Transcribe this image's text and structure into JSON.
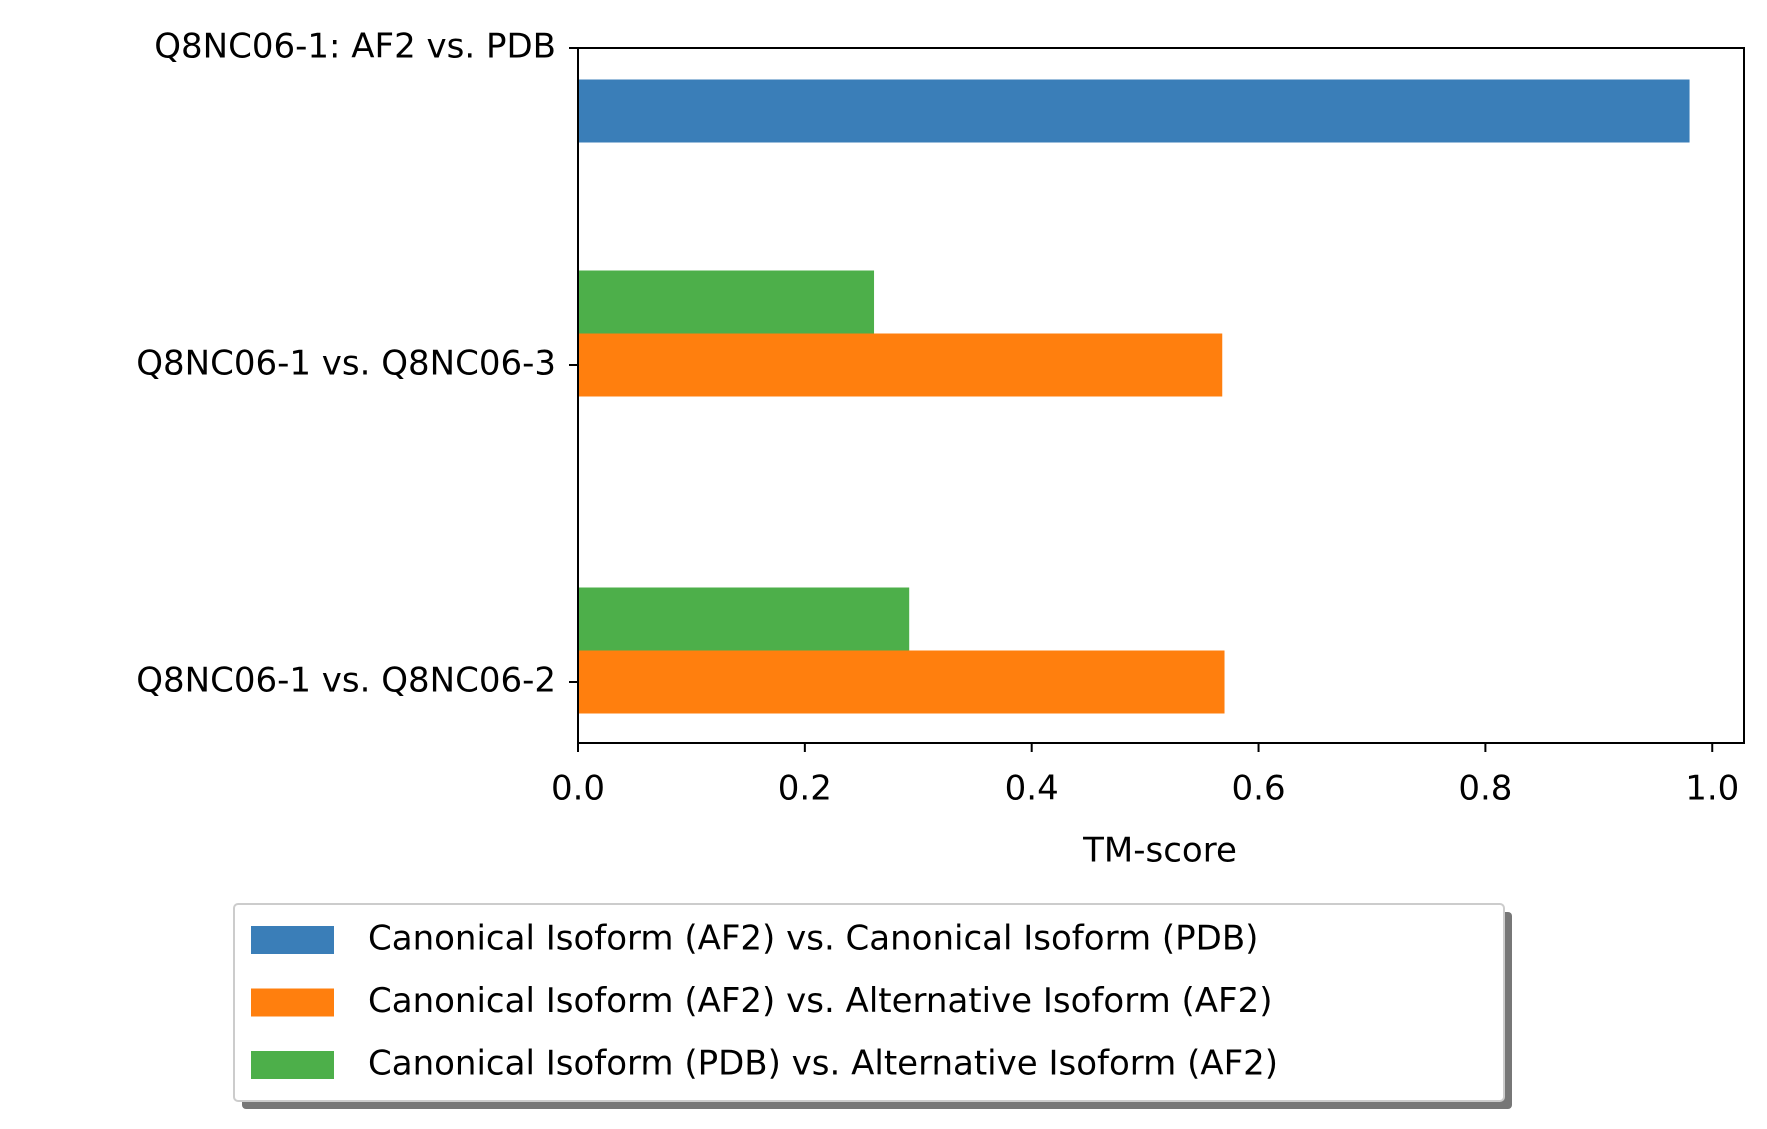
{
  "chart_data": {
    "type": "barh",
    "xlabel": "TM-score",
    "categories": [
      "Q8NC06-1: AF2 vs. PDB",
      "Q8NC06-1 vs. Q8NC06-3",
      "Q8NC06-1 vs. Q8NC06-2"
    ],
    "series": [
      {
        "name": "Canonical Isoform (AF2) vs. Canonical Isoform (PDB)",
        "color": "#3a7eb8",
        "values": [
          0.98,
          null,
          null
        ]
      },
      {
        "name": "Canonical Isoform (AF2) vs. Alternative Isoform (AF2)",
        "color": "#ff7f0e",
        "values": [
          null,
          0.568,
          0.57
        ]
      },
      {
        "name": "Canonical Isoform (PDB) vs. Alternative Isoform (AF2)",
        "color": "#4daf4a",
        "values": [
          null,
          0.261,
          0.292
        ]
      }
    ],
    "xlim": [
      0,
      1.028
    ],
    "xticks": [
      {
        "value": 0,
        "label": "0.0"
      },
      {
        "value": 0.2,
        "label": "0.2"
      },
      {
        "value": 0.4,
        "label": "0.4"
      },
      {
        "value": 0.6,
        "label": "0.6"
      },
      {
        "value": 0.8,
        "label": "0.8"
      },
      {
        "value": 1,
        "label": "1.0"
      }
    ],
    "grid": false,
    "legend": "below"
  }
}
